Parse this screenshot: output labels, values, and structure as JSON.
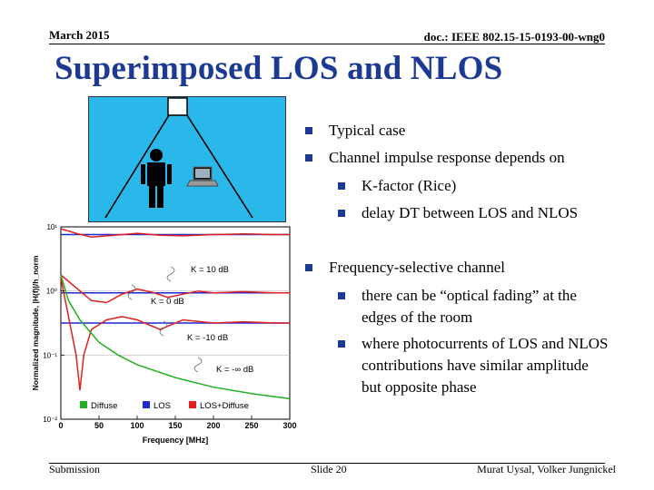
{
  "header": {
    "date": "March 2015",
    "doc": "doc.: IEEE 802.15-15-0193-00-wng0"
  },
  "title": "Superimposed LOS and NLOS",
  "bullets": {
    "b1": "Typical case",
    "b2": "Channel impulse response depends on",
    "b2a": "K-factor (Rice)",
    "b2b": "delay DT between LOS and NLOS",
    "b3": "Frequency-selective channel",
    "b3a": "there can be “optical fading” at the edges of the room",
    "b3b": "where photocurrents of LOS and NLOS contributions have similar amplitude but opposite phase"
  },
  "footer": {
    "left": "Submission",
    "center": "Slide 20",
    "right": "Murat Uysal, Volker Jungnickel"
  },
  "colors": {
    "title": "#1c3a94",
    "room": "#2ab8ea",
    "diffuse": "#22b022",
    "los": "#1e2ad6",
    "los_diffuse": "#e02020"
  },
  "chart_data": {
    "type": "line",
    "xlabel": "Frequency [MHz]",
    "ylabel": "Normalized magnitude, |H(f)|/h_norm",
    "x_ticks": [
      "0",
      "50",
      "100",
      "150",
      "200",
      "250",
      "300"
    ],
    "y_ticks": [
      "10¹",
      "10⁰",
      "10⁻¹",
      "10⁻²"
    ],
    "xlim": [
      0,
      300
    ],
    "ylim_log10": [
      -2,
      1
    ],
    "legend": [
      "Diffuse",
      "LOS",
      "LOS+Diffuse"
    ],
    "annotations": [
      "K = 10 dB",
      "K = 0 dB",
      "K = -10 dB",
      "K = -∞ dB"
    ],
    "series": [
      {
        "name": "LOS",
        "x": [
          0,
          300
        ],
        "log10_y": [
          0.88,
          0.88
        ]
      },
      {
        "name": "LOS",
        "x": [
          0,
          300
        ],
        "log10_y": [
          -0.03,
          -0.03
        ]
      },
      {
        "name": "LOS",
        "x": [
          0,
          300
        ],
        "log10_y": [
          -0.5,
          -0.5
        ]
      },
      {
        "name": "LOS+Diffuse",
        "x": [
          0,
          20,
          40,
          70,
          100,
          130,
          160,
          200,
          240,
          280,
          300
        ],
        "log10_y": [
          0.97,
          0.9,
          0.84,
          0.87,
          0.9,
          0.87,
          0.86,
          0.88,
          0.89,
          0.88,
          0.88
        ]
      },
      {
        "name": "LOS+Diffuse",
        "x": [
          0,
          20,
          40,
          60,
          80,
          100,
          120,
          140,
          160,
          180,
          200,
          240,
          280,
          300
        ],
        "log10_y": [
          0.25,
          0.05,
          -0.15,
          -0.18,
          -0.05,
          0.03,
          -0.02,
          -0.1,
          -0.05,
          0.0,
          -0.03,
          -0.01,
          -0.03,
          -0.03
        ]
      },
      {
        "name": "LOS+Diffuse",
        "x": [
          0,
          10,
          20,
          25,
          30,
          40,
          60,
          80,
          100,
          130,
          160,
          200,
          240,
          280,
          300
        ],
        "log10_y": [
          0.2,
          -0.4,
          -1.0,
          -1.55,
          -1.0,
          -0.6,
          -0.45,
          -0.4,
          -0.45,
          -0.6,
          -0.45,
          -0.5,
          -0.48,
          -0.5,
          -0.5
        ]
      },
      {
        "name": "Diffuse",
        "x": [
          0,
          10,
          25,
          50,
          75,
          100,
          150,
          200,
          250,
          300
        ],
        "log10_y": [
          0.25,
          -0.15,
          -0.45,
          -0.8,
          -1.0,
          -1.15,
          -1.35,
          -1.5,
          -1.6,
          -1.68
        ]
      }
    ]
  }
}
